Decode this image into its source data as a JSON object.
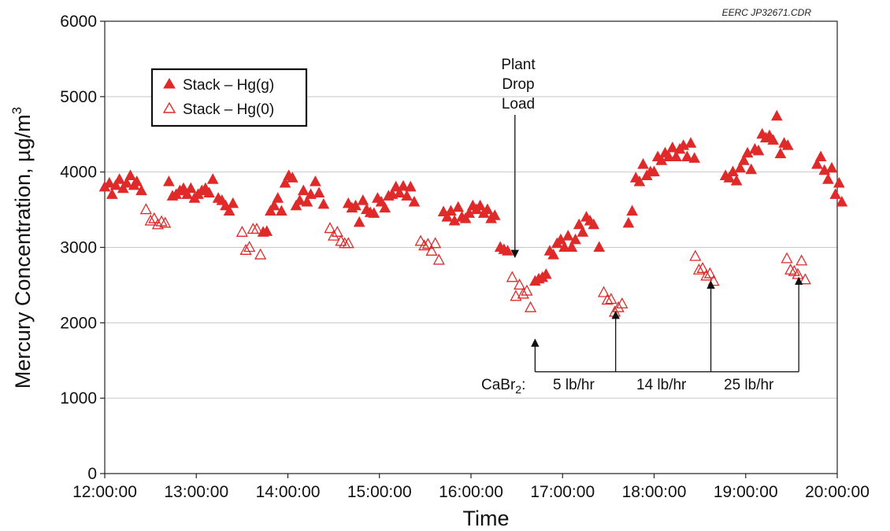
{
  "chart_data": {
    "type": "scatter",
    "credit": "EERC JP32671.CDR",
    "xlabel": "Time",
    "ylabel": "Mercury Concentration, µg/m",
    "ylabel_sup": "3",
    "xlim": [
      12,
      20
    ],
    "ylim": [
      0,
      6000
    ],
    "grid": true,
    "x_tick_labels": [
      "12:00:00",
      "13:00:00",
      "14:00:00",
      "15:00:00",
      "16:00:00",
      "17:00:00",
      "18:00:00",
      "19:00:00",
      "20:00:00"
    ],
    "y_tick_labels": [
      "0",
      "1000",
      "2000",
      "3000",
      "4000",
      "5000",
      "6000"
    ],
    "legend": {
      "placement": "top-left",
      "entries": [
        {
          "label": "Stack – Hg(g)",
          "marker": "filled-triangle"
        },
        {
          "label": "Stack – Hg(0)",
          "marker": "open-triangle"
        }
      ]
    },
    "color": "#e02a2a",
    "annotations": {
      "plant_drop": {
        "lines": [
          "Plant",
          "Drop",
          "Load"
        ],
        "x": 16.48,
        "y": 2870
      },
      "cabr2_label": "CaBr",
      "cabr2_sub": "2",
      "cabr2_colon": ":",
      "rates": [
        {
          "label": "5 lb/hr",
          "x": 16.7
        },
        {
          "label": "14 lb/hr",
          "x": 17.58
        },
        {
          "label": "25 lb/hr",
          "x": 18.62
        }
      ],
      "injection_arrows": [
        {
          "x": 16.7,
          "y": 1780
        },
        {
          "x": 17.58,
          "y": 2150
        },
        {
          "x": 18.62,
          "y": 2550
        },
        {
          "x": 19.58,
          "y": 2600
        }
      ],
      "bracket_y": 1350
    },
    "series": [
      {
        "name": "Stack – Hg(g)",
        "marker": "filled-triangle",
        "points": [
          [
            12.0,
            3800
          ],
          [
            12.05,
            3850
          ],
          [
            12.08,
            3700
          ],
          [
            12.12,
            3820
          ],
          [
            12.16,
            3900
          ],
          [
            12.2,
            3780
          ],
          [
            12.24,
            3850
          ],
          [
            12.28,
            3950
          ],
          [
            12.32,
            3820
          ],
          [
            12.35,
            3870
          ],
          [
            12.4,
            3750
          ],
          [
            12.7,
            3870
          ],
          [
            12.74,
            3680
          ],
          [
            12.78,
            3700
          ],
          [
            12.82,
            3750
          ],
          [
            12.86,
            3780
          ],
          [
            12.9,
            3700
          ],
          [
            12.94,
            3780
          ],
          [
            12.98,
            3650
          ],
          [
            13.02,
            3700
          ],
          [
            13.06,
            3750
          ],
          [
            13.1,
            3780
          ],
          [
            13.14,
            3720
          ],
          [
            13.18,
            3900
          ],
          [
            13.24,
            3650
          ],
          [
            13.28,
            3620
          ],
          [
            13.32,
            3550
          ],
          [
            13.36,
            3480
          ],
          [
            13.4,
            3580
          ],
          [
            13.73,
            3200
          ],
          [
            13.77,
            3210
          ],
          [
            13.81,
            3480
          ],
          [
            13.85,
            3550
          ],
          [
            13.89,
            3650
          ],
          [
            13.93,
            3480
          ],
          [
            13.97,
            3850
          ],
          [
            14.01,
            3950
          ],
          [
            14.05,
            3920
          ],
          [
            14.09,
            3550
          ],
          [
            14.13,
            3620
          ],
          [
            14.17,
            3750
          ],
          [
            14.21,
            3600
          ],
          [
            14.25,
            3700
          ],
          [
            14.3,
            3870
          ],
          [
            14.34,
            3720
          ],
          [
            14.39,
            3570
          ],
          [
            14.66,
            3580
          ],
          [
            14.7,
            3520
          ],
          [
            14.74,
            3550
          ],
          [
            14.78,
            3330
          ],
          [
            14.82,
            3620
          ],
          [
            14.86,
            3500
          ],
          [
            14.9,
            3460
          ],
          [
            14.94,
            3450
          ],
          [
            14.98,
            3650
          ],
          [
            15.02,
            3600
          ],
          [
            15.06,
            3520
          ],
          [
            15.1,
            3680
          ],
          [
            15.14,
            3700
          ],
          [
            15.18,
            3800
          ],
          [
            15.22,
            3720
          ],
          [
            15.26,
            3810
          ],
          [
            15.3,
            3680
          ],
          [
            15.34,
            3800
          ],
          [
            15.38,
            3600
          ],
          [
            15.7,
            3470
          ],
          [
            15.74,
            3400
          ],
          [
            15.78,
            3480
          ],
          [
            15.82,
            3350
          ],
          [
            15.86,
            3530
          ],
          [
            15.9,
            3400
          ],
          [
            15.94,
            3380
          ],
          [
            15.98,
            3450
          ],
          [
            16.02,
            3550
          ],
          [
            16.06,
            3500
          ],
          [
            16.1,
            3550
          ],
          [
            16.14,
            3450
          ],
          [
            16.18,
            3500
          ],
          [
            16.22,
            3380
          ],
          [
            16.26,
            3420
          ],
          [
            16.32,
            3000
          ],
          [
            16.36,
            2970
          ],
          [
            16.4,
            2950
          ],
          [
            16.7,
            2550
          ],
          [
            16.74,
            2580
          ],
          [
            16.78,
            2600
          ],
          [
            16.82,
            2640
          ],
          [
            16.86,
            2950
          ],
          [
            16.9,
            2900
          ],
          [
            16.94,
            3050
          ],
          [
            16.98,
            3100
          ],
          [
            17.02,
            3000
          ],
          [
            17.06,
            3150
          ],
          [
            17.1,
            3000
          ],
          [
            17.14,
            3100
          ],
          [
            17.18,
            3300
          ],
          [
            17.22,
            3200
          ],
          [
            17.26,
            3400
          ],
          [
            17.3,
            3350
          ],
          [
            17.34,
            3300
          ],
          [
            17.4,
            3000
          ],
          [
            17.72,
            3320
          ],
          [
            17.76,
            3480
          ],
          [
            17.8,
            3920
          ],
          [
            17.84,
            3870
          ],
          [
            17.88,
            4100
          ],
          [
            17.92,
            3950
          ],
          [
            17.96,
            4000
          ],
          [
            18.0,
            4000
          ],
          [
            18.04,
            4200
          ],
          [
            18.08,
            4150
          ],
          [
            18.12,
            4250
          ],
          [
            18.16,
            4200
          ],
          [
            18.2,
            4320
          ],
          [
            18.24,
            4200
          ],
          [
            18.28,
            4300
          ],
          [
            18.32,
            4350
          ],
          [
            18.36,
            4200
          ],
          [
            18.4,
            4380
          ],
          [
            18.44,
            4180
          ],
          [
            18.78,
            3950
          ],
          [
            18.82,
            3920
          ],
          [
            18.86,
            4000
          ],
          [
            18.9,
            3880
          ],
          [
            18.94,
            4050
          ],
          [
            18.98,
            4150
          ],
          [
            19.02,
            4250
          ],
          [
            19.06,
            4030
          ],
          [
            19.1,
            4300
          ],
          [
            19.14,
            4280
          ],
          [
            19.18,
            4500
          ],
          [
            19.22,
            4450
          ],
          [
            19.26,
            4480
          ],
          [
            19.3,
            4420
          ],
          [
            19.34,
            4740
          ],
          [
            19.38,
            4240
          ],
          [
            19.42,
            4380
          ],
          [
            19.46,
            4350
          ],
          [
            19.78,
            4100
          ],
          [
            19.82,
            4200
          ],
          [
            19.86,
            4020
          ],
          [
            19.9,
            3900
          ],
          [
            19.94,
            4050
          ],
          [
            19.98,
            3700
          ],
          [
            20.02,
            3850
          ],
          [
            20.05,
            3600
          ]
        ]
      },
      {
        "name": "Stack – Hg(0)",
        "marker": "open-triangle",
        "points": [
          [
            12.45,
            3500
          ],
          [
            12.5,
            3350
          ],
          [
            12.54,
            3380
          ],
          [
            12.58,
            3300
          ],
          [
            12.62,
            3340
          ],
          [
            12.66,
            3320
          ],
          [
            13.5,
            3200
          ],
          [
            13.54,
            2960
          ],
          [
            13.58,
            3000
          ],
          [
            13.62,
            3240
          ],
          [
            13.66,
            3240
          ],
          [
            13.7,
            2900
          ],
          [
            14.46,
            3250
          ],
          [
            14.5,
            3150
          ],
          [
            14.54,
            3200
          ],
          [
            14.58,
            3080
          ],
          [
            14.62,
            3050
          ],
          [
            14.66,
            3050
          ],
          [
            15.45,
            3080
          ],
          [
            15.49,
            3020
          ],
          [
            15.53,
            3040
          ],
          [
            15.57,
            2950
          ],
          [
            15.61,
            3050
          ],
          [
            15.65,
            2830
          ],
          [
            16.45,
            2600
          ],
          [
            16.49,
            2350
          ],
          [
            16.53,
            2500
          ],
          [
            16.57,
            2380
          ],
          [
            16.61,
            2420
          ],
          [
            16.65,
            2200
          ],
          [
            17.45,
            2400
          ],
          [
            17.49,
            2300
          ],
          [
            17.53,
            2310
          ],
          [
            17.57,
            2140
          ],
          [
            17.61,
            2200
          ],
          [
            17.65,
            2250
          ],
          [
            18.45,
            2880
          ],
          [
            18.49,
            2700
          ],
          [
            18.53,
            2720
          ],
          [
            18.57,
            2620
          ],
          [
            18.61,
            2650
          ],
          [
            18.65,
            2550
          ],
          [
            19.45,
            2850
          ],
          [
            19.49,
            2700
          ],
          [
            19.53,
            2680
          ],
          [
            19.57,
            2640
          ],
          [
            19.61,
            2820
          ],
          [
            19.65,
            2570
          ]
        ]
      }
    ]
  }
}
